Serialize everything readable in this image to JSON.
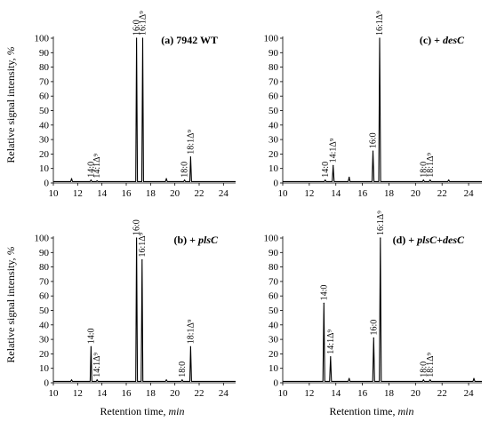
{
  "figure": {
    "y_axis_title": "Relative signal intensity,",
    "y_axis_unit": "%",
    "x_axis_title": "Retention time,",
    "x_axis_unit": "min"
  },
  "chart_data": [
    {
      "id": "a",
      "type": "line",
      "title": "(a) 7942 WT",
      "title_parts": [
        {
          "text": "(a) 7942 WT",
          "italic": false
        }
      ],
      "xlim": [
        10,
        25
      ],
      "ylim": [
        0,
        100
      ],
      "xticks": [
        10,
        12,
        14,
        16,
        18,
        20,
        22,
        24
      ],
      "yticks": [
        0,
        10,
        20,
        30,
        40,
        50,
        60,
        70,
        80,
        90,
        100
      ],
      "baseline": 1,
      "peaks": [
        {
          "x": 11.5,
          "y": 3
        },
        {
          "x": 13.1,
          "y": 2,
          "label": "14:0"
        },
        {
          "x": 13.6,
          "y": 1.5,
          "label": "14:1Δ⁹"
        },
        {
          "x": 16.85,
          "y": 100,
          "label": "16:0"
        },
        {
          "x": 17.35,
          "y": 100,
          "label": "16:1Δ⁹"
        },
        {
          "x": 19.3,
          "y": 3
        },
        {
          "x": 20.8,
          "y": 2,
          "label": "18:0"
        },
        {
          "x": 21.3,
          "y": 18,
          "label": "18:1Δ⁹"
        }
      ]
    },
    {
      "id": "b",
      "type": "line",
      "title": "(b) + plsC",
      "title_parts": [
        {
          "text": "(b) + ",
          "italic": false
        },
        {
          "text": "plsC",
          "italic": true
        }
      ],
      "xlim": [
        10,
        25
      ],
      "ylim": [
        0,
        100
      ],
      "xticks": [
        10,
        12,
        14,
        16,
        18,
        20,
        22,
        24
      ],
      "yticks": [
        0,
        10,
        20,
        30,
        40,
        50,
        60,
        70,
        80,
        90,
        100
      ],
      "baseline": 1,
      "peaks": [
        {
          "x": 11.5,
          "y": 2
        },
        {
          "x": 13.1,
          "y": 25,
          "label": "14:0"
        },
        {
          "x": 13.6,
          "y": 2,
          "label": "14:1Δ⁹"
        },
        {
          "x": 16.85,
          "y": 100,
          "label": "16:0"
        },
        {
          "x": 17.3,
          "y": 85,
          "label": "16:1Δ⁹"
        },
        {
          "x": 19.3,
          "y": 2
        },
        {
          "x": 20.6,
          "y": 2,
          "label": "18:0"
        },
        {
          "x": 21.3,
          "y": 25,
          "label": "18:1Δ⁹"
        }
      ]
    },
    {
      "id": "c",
      "type": "line",
      "title": "(c) + desC",
      "title_parts": [
        {
          "text": "(c) + ",
          "italic": false
        },
        {
          "text": "desC",
          "italic": true
        }
      ],
      "xlim": [
        10,
        25
      ],
      "ylim": [
        0,
        100
      ],
      "xticks": [
        10,
        12,
        14,
        16,
        18,
        20,
        22,
        24
      ],
      "yticks": [
        0,
        10,
        20,
        30,
        40,
        50,
        60,
        70,
        80,
        90,
        100
      ],
      "baseline": 1,
      "peaks": [
        {
          "x": 13.2,
          "y": 2,
          "label": "14:0"
        },
        {
          "x": 13.8,
          "y": 12,
          "label": "14:1Δ⁹"
        },
        {
          "x": 15.0,
          "y": 4
        },
        {
          "x": 16.8,
          "y": 22,
          "label": "16:0"
        },
        {
          "x": 17.3,
          "y": 100,
          "label": "16:1Δ⁹"
        },
        {
          "x": 20.6,
          "y": 2,
          "label": "18:0"
        },
        {
          "x": 21.1,
          "y": 2,
          "label": "18:1Δ⁹"
        },
        {
          "x": 22.5,
          "y": 2
        }
      ]
    },
    {
      "id": "d",
      "type": "line",
      "title": "(d) + plsC+desC",
      "title_parts": [
        {
          "text": "(d) + ",
          "italic": false
        },
        {
          "text": "plsC",
          "italic": true
        },
        {
          "text": "+",
          "italic": false
        },
        {
          "text": "desC",
          "italic": true
        }
      ],
      "xlim": [
        10,
        25
      ],
      "ylim": [
        0,
        100
      ],
      "xticks": [
        10,
        12,
        14,
        16,
        18,
        20,
        22,
        24
      ],
      "yticks": [
        0,
        10,
        20,
        30,
        40,
        50,
        60,
        70,
        80,
        90,
        100
      ],
      "baseline": 1,
      "peaks": [
        {
          "x": 13.1,
          "y": 55,
          "label": "14:0"
        },
        {
          "x": 13.6,
          "y": 18,
          "label": "14:1Δ⁹"
        },
        {
          "x": 15.0,
          "y": 3
        },
        {
          "x": 16.85,
          "y": 31,
          "label": "16:0"
        },
        {
          "x": 17.35,
          "y": 100,
          "label": "16:1Δ⁹"
        },
        {
          "x": 20.6,
          "y": 2,
          "label": "18:0"
        },
        {
          "x": 21.1,
          "y": 2,
          "label": "18:1Δ⁹"
        },
        {
          "x": 24.4,
          "y": 3
        }
      ]
    }
  ]
}
